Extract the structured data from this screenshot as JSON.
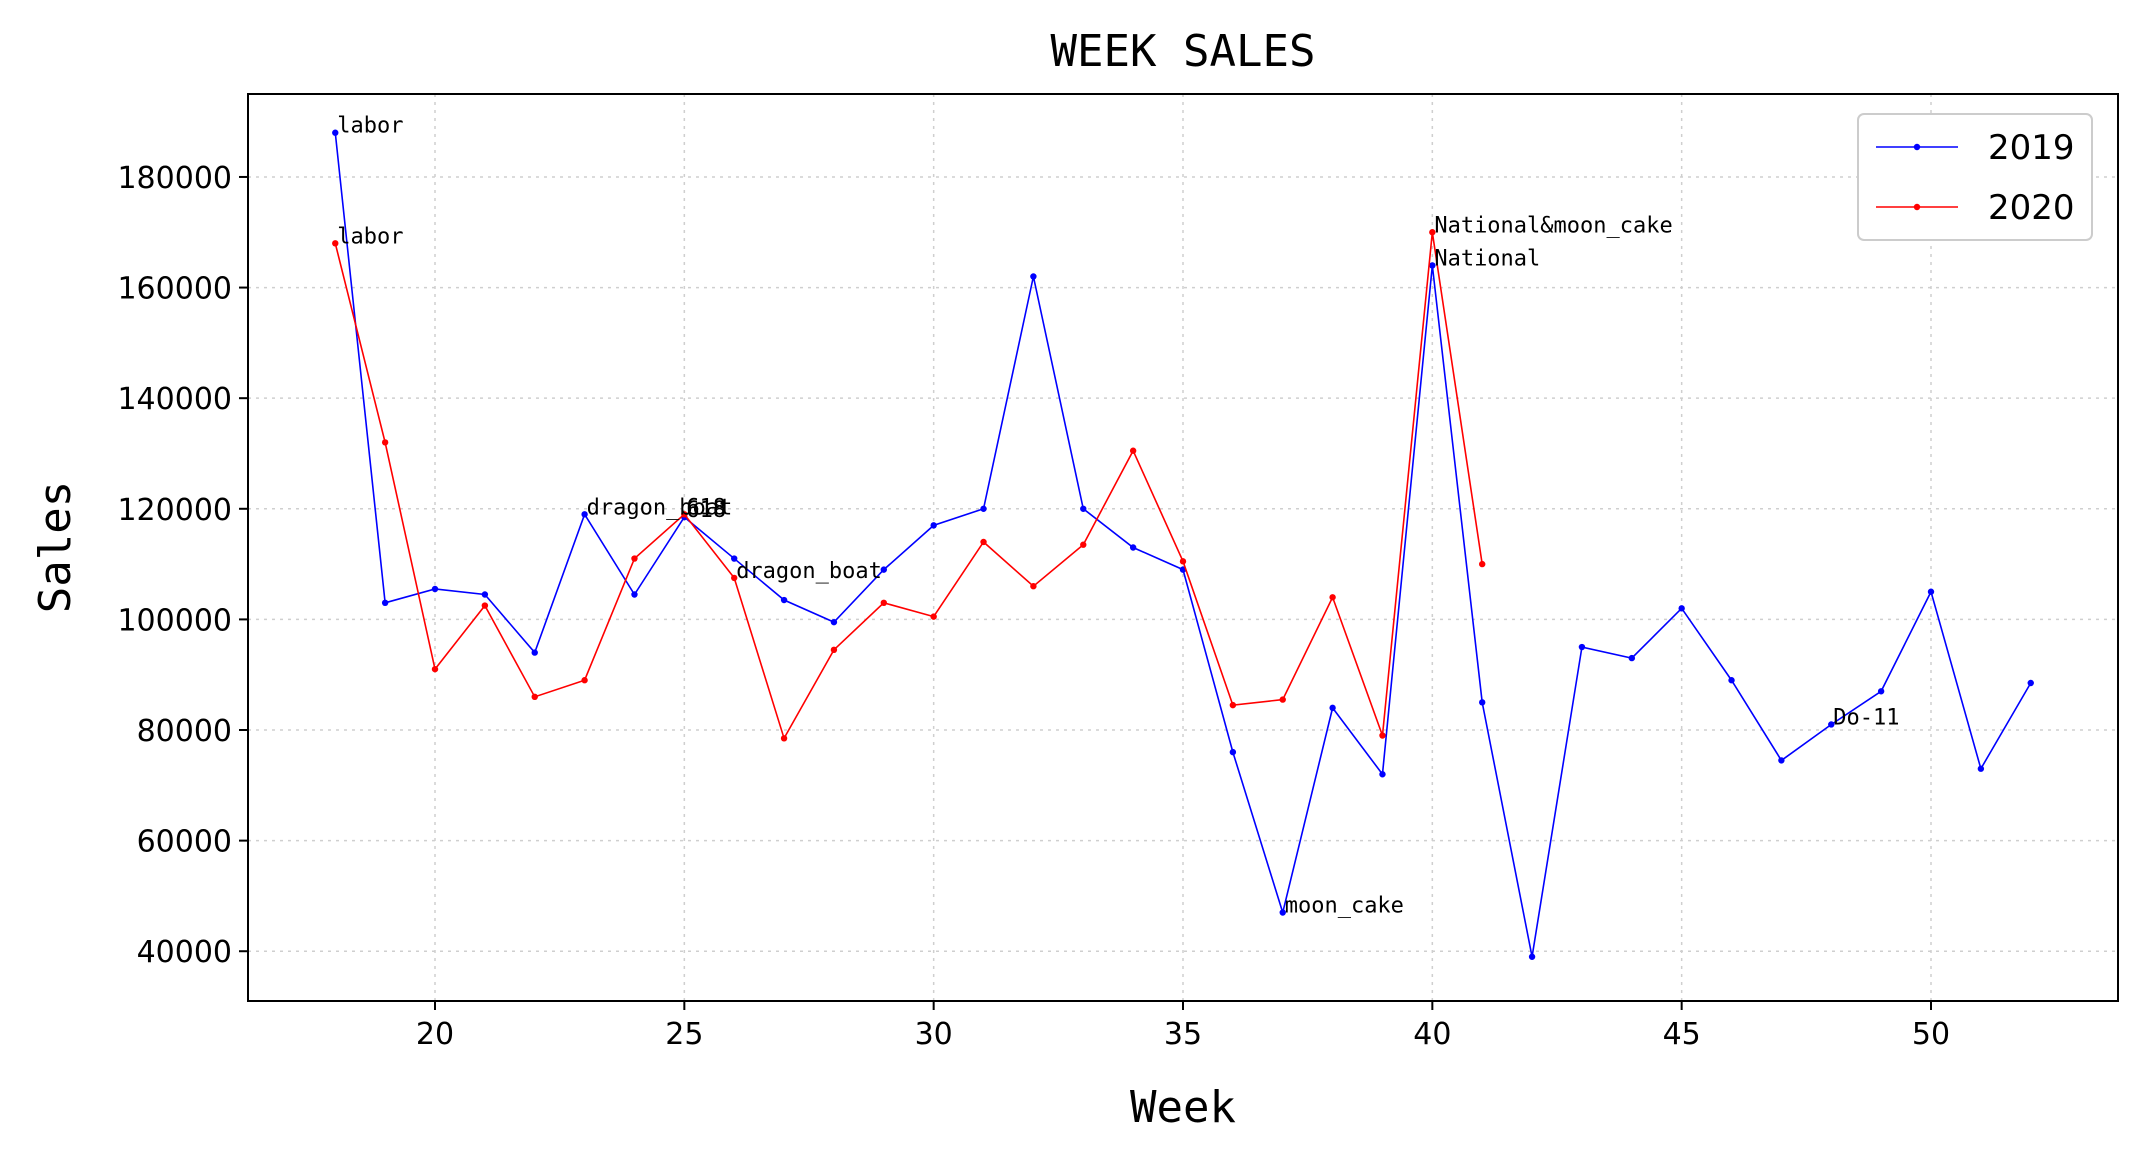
{
  "chart_data": {
    "type": "line",
    "title": "WEEK SALES",
    "xlabel": "Week",
    "ylabel": "Sales",
    "xlim": [
      16.25,
      53.75
    ],
    "ylim": [
      31000,
      195000
    ],
    "xticks": [
      20,
      25,
      30,
      35,
      40,
      45,
      50
    ],
    "yticks": [
      40000,
      60000,
      80000,
      100000,
      120000,
      140000,
      160000,
      180000
    ],
    "grid": true,
    "legend_position": "top-right",
    "series": [
      {
        "name": "2019",
        "color": "#0000ff",
        "points": [
          [
            18,
            188000
          ],
          [
            19,
            103000
          ],
          [
            20,
            105500
          ],
          [
            21,
            104500
          ],
          [
            22,
            94000
          ],
          [
            23,
            119000
          ],
          [
            24,
            104500
          ],
          [
            25,
            118500
          ],
          [
            26,
            111000
          ],
          [
            27,
            103500
          ],
          [
            28,
            99500
          ],
          [
            29,
            109000
          ],
          [
            30,
            117000
          ],
          [
            31,
            120000
          ],
          [
            32,
            162000
          ],
          [
            33,
            120000
          ],
          [
            34,
            113000
          ],
          [
            35,
            109000
          ],
          [
            36,
            76000
          ],
          [
            37,
            47000
          ],
          [
            38,
            84000
          ],
          [
            39,
            72000
          ],
          [
            40,
            164000
          ],
          [
            41,
            85000
          ],
          [
            42,
            39000
          ],
          [
            43,
            95000
          ],
          [
            44,
            93000
          ],
          [
            45,
            102000
          ],
          [
            46,
            89000
          ],
          [
            47,
            74500
          ],
          [
            48,
            81000
          ],
          [
            49,
            87000
          ],
          [
            50,
            105000
          ],
          [
            51,
            73000
          ],
          [
            52,
            88500
          ]
        ]
      },
      {
        "name": "2020",
        "color": "#ff0000",
        "points": [
          [
            18,
            168000
          ],
          [
            19,
            132000
          ],
          [
            20,
            91000
          ],
          [
            21,
            102500
          ],
          [
            22,
            86000
          ],
          [
            23,
            89000
          ],
          [
            24,
            111000
          ],
          [
            25,
            119000
          ],
          [
            26,
            107500
          ],
          [
            27,
            78500
          ],
          [
            28,
            94500
          ],
          [
            29,
            103000
          ],
          [
            30,
            100500
          ],
          [
            31,
            114000
          ],
          [
            32,
            106000
          ],
          [
            33,
            113500
          ],
          [
            34,
            130500
          ],
          [
            35,
            110500
          ],
          [
            36,
            84500
          ],
          [
            37,
            85500
          ],
          [
            38,
            104000
          ],
          [
            39,
            79000
          ],
          [
            40,
            170000
          ],
          [
            41,
            110000
          ]
        ]
      }
    ],
    "annotations": [
      {
        "x": 18,
        "y": 188000,
        "text": "labor"
      },
      {
        "x": 18,
        "y": 168000,
        "text": "labor"
      },
      {
        "x": 23,
        "y": 119000,
        "text": "dragon_boat"
      },
      {
        "x": 25,
        "y": 118500,
        "text": "618"
      },
      {
        "x": 25,
        "y": 119000,
        "text": "618"
      },
      {
        "x": 26,
        "y": 107500,
        "text": "dragon_boat"
      },
      {
        "x": 37,
        "y": 47000,
        "text": "moon_cake"
      },
      {
        "x": 40,
        "y": 170000,
        "text": "National&moon_cake"
      },
      {
        "x": 40,
        "y": 164000,
        "text": "National"
      },
      {
        "x": 48,
        "y": 81000,
        "text": "Do-11"
      }
    ]
  }
}
